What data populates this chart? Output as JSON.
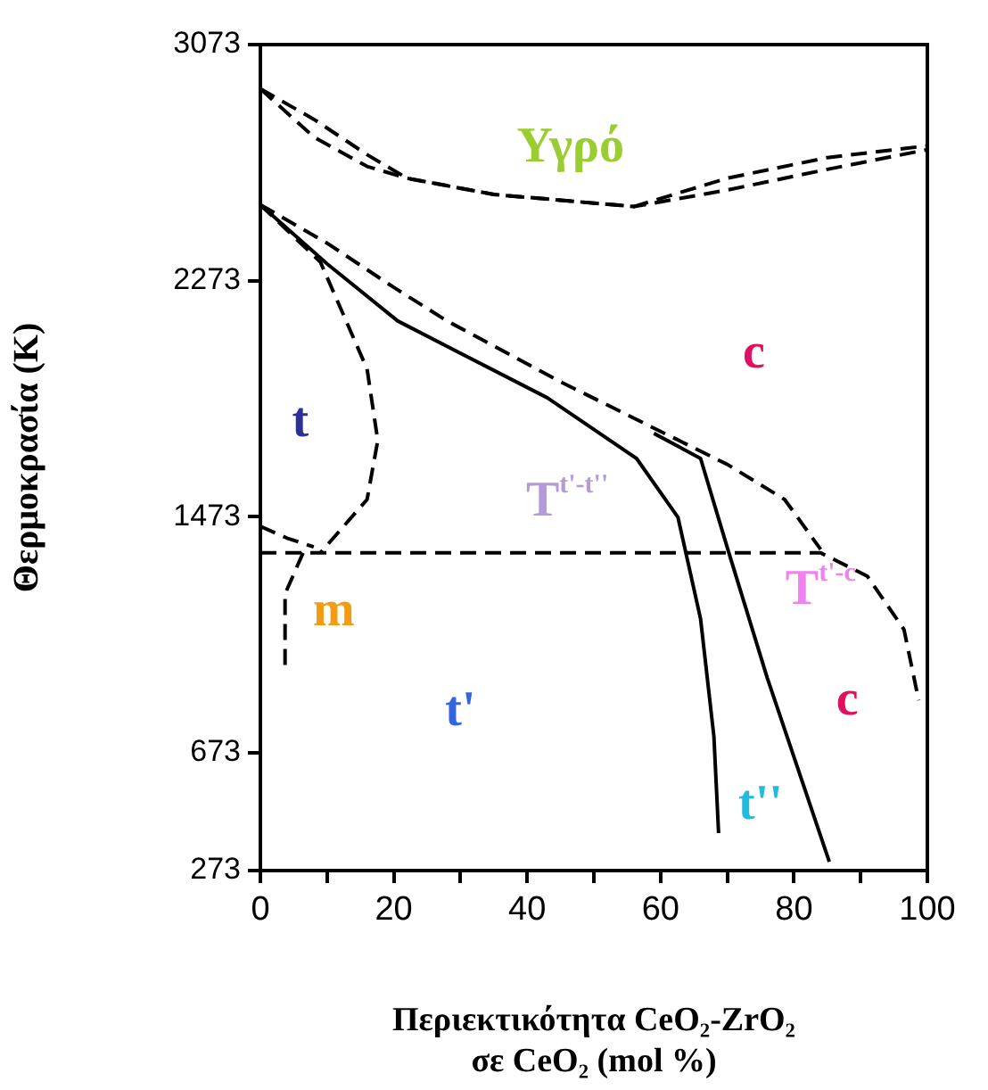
{
  "chart_data": {
    "type": "line",
    "xlabel": "Περιεκτικότητα CeO₂-ZrO₂\nσε CeO₂ (mol %)",
    "ylabel": "Θερμοκρασία (K)",
    "xlim": [
      0,
      100
    ],
    "xticks": [
      0,
      {
        "value": 10,
        "label": null
      },
      20,
      {
        "value": 30,
        "label": null
      },
      40,
      {
        "value": 50,
        "label": null
      },
      60,
      {
        "value": 70,
        "label": null
      },
      80,
      {
        "value": 90,
        "label": null
      },
      100
    ],
    "ylim": [
      273,
      3073
    ],
    "yticks": [
      273,
      673,
      1473,
      2273,
      3073
    ],
    "grid": false,
    "legend": false,
    "marker": "none",
    "series": [
      {
        "color": "#000000",
        "line_style": "dashed",
        "x": [
          0,
          8,
          16,
          22,
          35,
          56,
          70,
          85,
          100
        ],
        "values": [
          2923,
          2820,
          2700,
          2620,
          2565,
          2524,
          2620,
          2690,
          2730
        ]
      },
      {
        "color": "#000000",
        "line_style": "dashed",
        "x": [
          0,
          8,
          16,
          22,
          35,
          56,
          70,
          85,
          100
        ],
        "values": [
          2923,
          2760,
          2660,
          2620,
          2565,
          2524,
          2580,
          2650,
          2717
        ]
      },
      {
        "color": "#000000",
        "line_style": "dashed",
        "x": [
          0,
          10,
          20,
          28,
          45,
          59,
          70,
          78.6,
          84
        ],
        "values": [
          2530,
          2400,
          2250,
          2136,
          1930,
          1773,
          1650,
          1531,
          1362
        ]
      },
      {
        "color": "#000000",
        "line_style": "solid",
        "x": [
          0,
          10,
          20.6,
          43,
          56.4,
          62.6,
          66,
          68,
          68.7
        ],
        "values": [
          2530,
          2330,
          2136,
          1876,
          1670,
          1471,
          1126,
          727,
          400
        ]
      },
      {
        "color": "#000000",
        "line_style": "solid",
        "x": [
          59,
          66,
          70,
          76,
          85.3
        ],
        "values": [
          1755,
          1670,
          1368,
          926,
          303
        ]
      },
      {
        "color": "#000000",
        "line_style": "dashed",
        "x": [
          0,
          84,
          91,
          96.5,
          98.7
        ],
        "values": [
          1350,
          1350,
          1271,
          1090,
          850
        ]
      },
      {
        "color": "#000000",
        "line_style": "dashed",
        "x": [
          0,
          9,
          16,
          17.6,
          16,
          9
        ],
        "values": [
          2530,
          2336,
          1973,
          1731,
          1531,
          1350
        ]
      },
      {
        "color": "#000000",
        "line_style": "dashed",
        "x": [
          6.4,
          3.7,
          3.7
        ],
        "values": [
          1350,
          1211,
          969
        ]
      },
      {
        "color": "#000000",
        "line_style": "dashed",
        "x": [
          0,
          4,
          8
        ],
        "values": [
          1440,
          1400,
          1370
        ]
      }
    ],
    "annotations": [
      "Υγρό",
      "c",
      "t",
      "T$^{t'-t''}$",
      "m",
      "T$^{t'-c}$",
      "t'",
      "c",
      "t''"
    ]
  }
}
